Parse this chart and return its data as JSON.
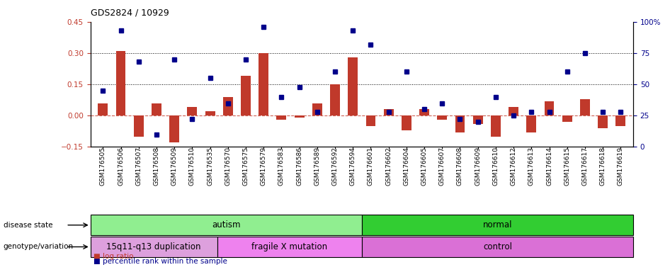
{
  "title": "GDS2824 / 10929",
  "samples": [
    "GSM176505",
    "GSM176506",
    "GSM176507",
    "GSM176508",
    "GSM176509",
    "GSM176510",
    "GSM176535",
    "GSM176570",
    "GSM176575",
    "GSM176579",
    "GSM176583",
    "GSM176586",
    "GSM176589",
    "GSM176592",
    "GSM176594",
    "GSM176601",
    "GSM176602",
    "GSM176604",
    "GSM176605",
    "GSM176607",
    "GSM176608",
    "GSM176609",
    "GSM176610",
    "GSM176612",
    "GSM176613",
    "GSM176614",
    "GSM176615",
    "GSM176617",
    "GSM176618",
    "GSM176619"
  ],
  "log_ratio": [
    0.06,
    0.31,
    -0.1,
    0.06,
    -0.13,
    0.04,
    0.02,
    0.09,
    0.19,
    0.3,
    -0.02,
    -0.01,
    0.06,
    0.15,
    0.28,
    -0.05,
    0.03,
    -0.07,
    0.03,
    -0.02,
    -0.08,
    -0.04,
    -0.1,
    0.04,
    -0.08,
    0.07,
    -0.03,
    0.08,
    -0.06,
    -0.05
  ],
  "percentile": [
    45,
    93,
    68,
    10,
    70,
    22,
    55,
    35,
    70,
    96,
    40,
    48,
    28,
    60,
    93,
    82,
    28,
    60,
    30,
    35,
    22,
    20,
    40,
    25,
    28,
    28,
    60,
    75,
    28,
    28
  ],
  "disease_state_groups": [
    {
      "label": "autism",
      "start": 0,
      "end": 15,
      "color": "#90ee90"
    },
    {
      "label": "normal",
      "start": 15,
      "end": 30,
      "color": "#32cd32"
    }
  ],
  "genotype_groups": [
    {
      "label": "15q11-q13 duplication",
      "start": 0,
      "end": 7,
      "color": "#dda0dd"
    },
    {
      "label": "fragile X mutation",
      "start": 7,
      "end": 15,
      "color": "#ee82ee"
    },
    {
      "label": "control",
      "start": 15,
      "end": 30,
      "color": "#da70d6"
    }
  ],
  "bar_color": "#c0392b",
  "dot_color": "#00008b",
  "dashed_color": "#c0392b",
  "left_ylim": [
    -0.15,
    0.45
  ],
  "left_yticks": [
    -0.15,
    0.0,
    0.15,
    0.3,
    0.45
  ],
  "right_ylim": [
    0,
    100
  ],
  "right_yticks": [
    0,
    25,
    50,
    75,
    100
  ],
  "right_yticklabels": [
    "0",
    "25",
    "50",
    "75",
    "100%"
  ],
  "legend_items": [
    {
      "label": "log ratio",
      "color": "#c0392b"
    },
    {
      "label": "percentile rank within the sample",
      "color": "#00008b"
    }
  ]
}
